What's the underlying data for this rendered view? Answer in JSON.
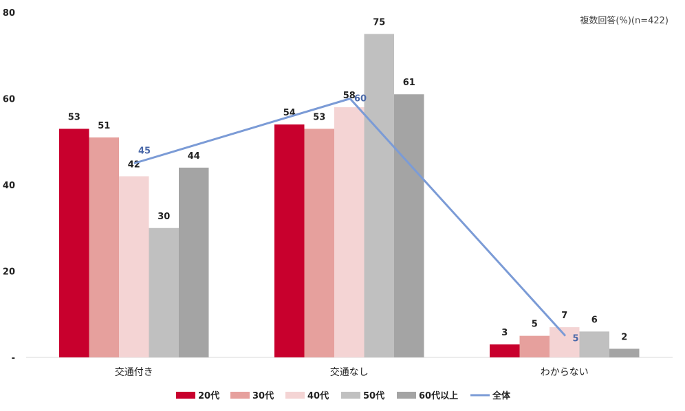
{
  "chart_data": {
    "type": "bar",
    "note": "複数回答(%)(n=422)",
    "categories": [
      "交通付き",
      "交通なし",
      "わからない"
    ],
    "yticks": [
      {
        "value": 0,
        "label": "-"
      },
      {
        "value": 20,
        "label": "20"
      },
      {
        "value": 40,
        "label": "40"
      },
      {
        "value": 60,
        "label": "60"
      },
      {
        "value": 80,
        "label": "80"
      }
    ],
    "ylim": [
      0,
      80
    ],
    "grid": false,
    "legend_position": "bottom",
    "series": [
      {
        "name": "20代",
        "color": "#c8002d",
        "values": [
          53,
          54,
          3
        ],
        "labels": [
          "53",
          "54",
          "3"
        ]
      },
      {
        "name": "30代",
        "color": "#e6a09d",
        "values": [
          51,
          53,
          5
        ],
        "labels": [
          "51",
          "53",
          "5"
        ]
      },
      {
        "name": "40代",
        "color": "#f4d4d4",
        "values": [
          42,
          58,
          7
        ],
        "labels": [
          "42",
          "58",
          "7"
        ]
      },
      {
        "name": "50代",
        "color": "#c0c0c0",
        "values": [
          30,
          75,
          6
        ],
        "labels": [
          "30",
          "75",
          "6"
        ]
      },
      {
        "name": "60代以上",
        "color": "#a4a4a4",
        "values": [
          44,
          61,
          2
        ],
        "labels": [
          "44",
          "61",
          "2"
        ]
      }
    ],
    "line": {
      "name": "全体",
      "color": "#7b9bd6",
      "values": [
        45,
        60,
        5
      ],
      "labels": [
        "45",
        "60",
        "5"
      ]
    }
  }
}
